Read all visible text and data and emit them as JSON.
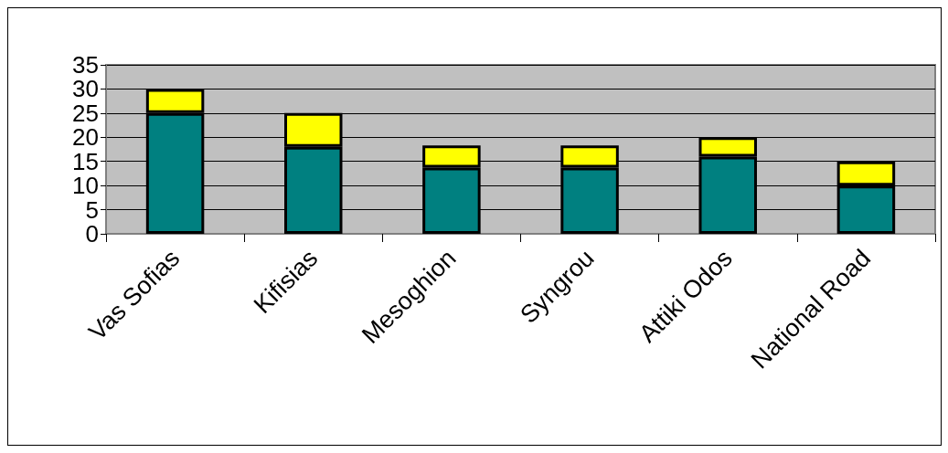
{
  "chart_data": {
    "type": "bar",
    "stacked": true,
    "categories": [
      "Vas Sofias",
      "Kifisias",
      "Mesoghion",
      "Syngrou",
      "Attiki Odos",
      "National Road"
    ],
    "series": [
      {
        "color": "#008080",
        "values": [
          25,
          18,
          13.7,
          13.7,
          16,
          10
        ]
      },
      {
        "color": "#ffff00",
        "values": [
          5,
          7,
          4.6,
          4.6,
          4,
          5
        ]
      }
    ],
    "ylim": [
      0,
      35
    ],
    "yticks": [
      0,
      5,
      10,
      15,
      20,
      25,
      30,
      35
    ],
    "grid": "y"
  }
}
